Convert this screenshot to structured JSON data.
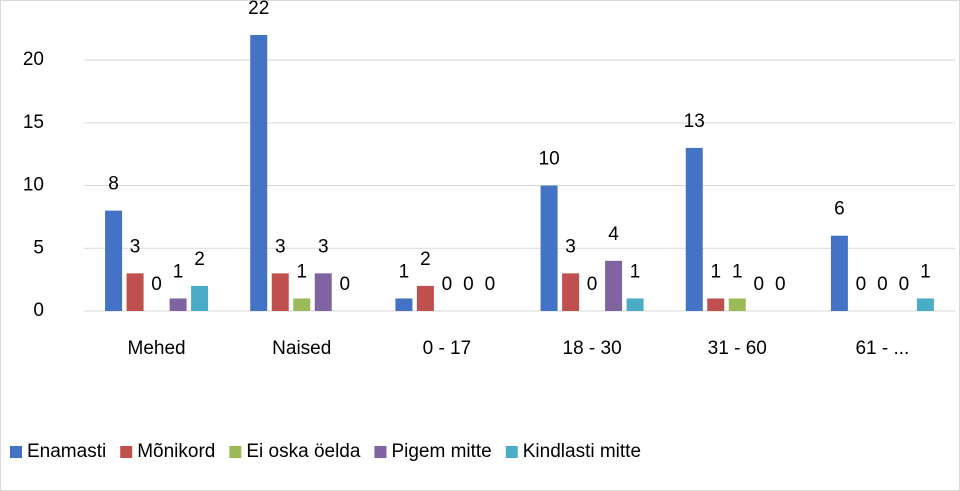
{
  "chart_data": {
    "type": "bar",
    "categories": [
      "Mehed",
      "Naised",
      "0 - 17",
      "18 - 30",
      "31 - 60",
      "61 - ..."
    ],
    "series": [
      {
        "name": "Enamasti",
        "color": "#4472c4",
        "values": [
          8,
          22,
          1,
          10,
          13,
          6
        ]
      },
      {
        "name": "Mõnikord",
        "color": "#c0504d",
        "values": [
          3,
          3,
          2,
          3,
          1,
          0
        ]
      },
      {
        "name": "Ei oska öelda",
        "color": "#9bbb59",
        "values": [
          0,
          1,
          0,
          0,
          1,
          0
        ]
      },
      {
        "name": "Pigem mitte",
        "color": "#8064a2",
        "values": [
          1,
          3,
          0,
          4,
          0,
          0
        ]
      },
      {
        "name": "Kindlasti mitte",
        "color": "#4bacc6",
        "values": [
          2,
          0,
          0,
          1,
          0,
          1
        ]
      }
    ],
    "ylim": [
      0,
      22
    ],
    "yticks": [
      0,
      5,
      10,
      15,
      20
    ],
    "grid": true,
    "legend": "bottom"
  }
}
